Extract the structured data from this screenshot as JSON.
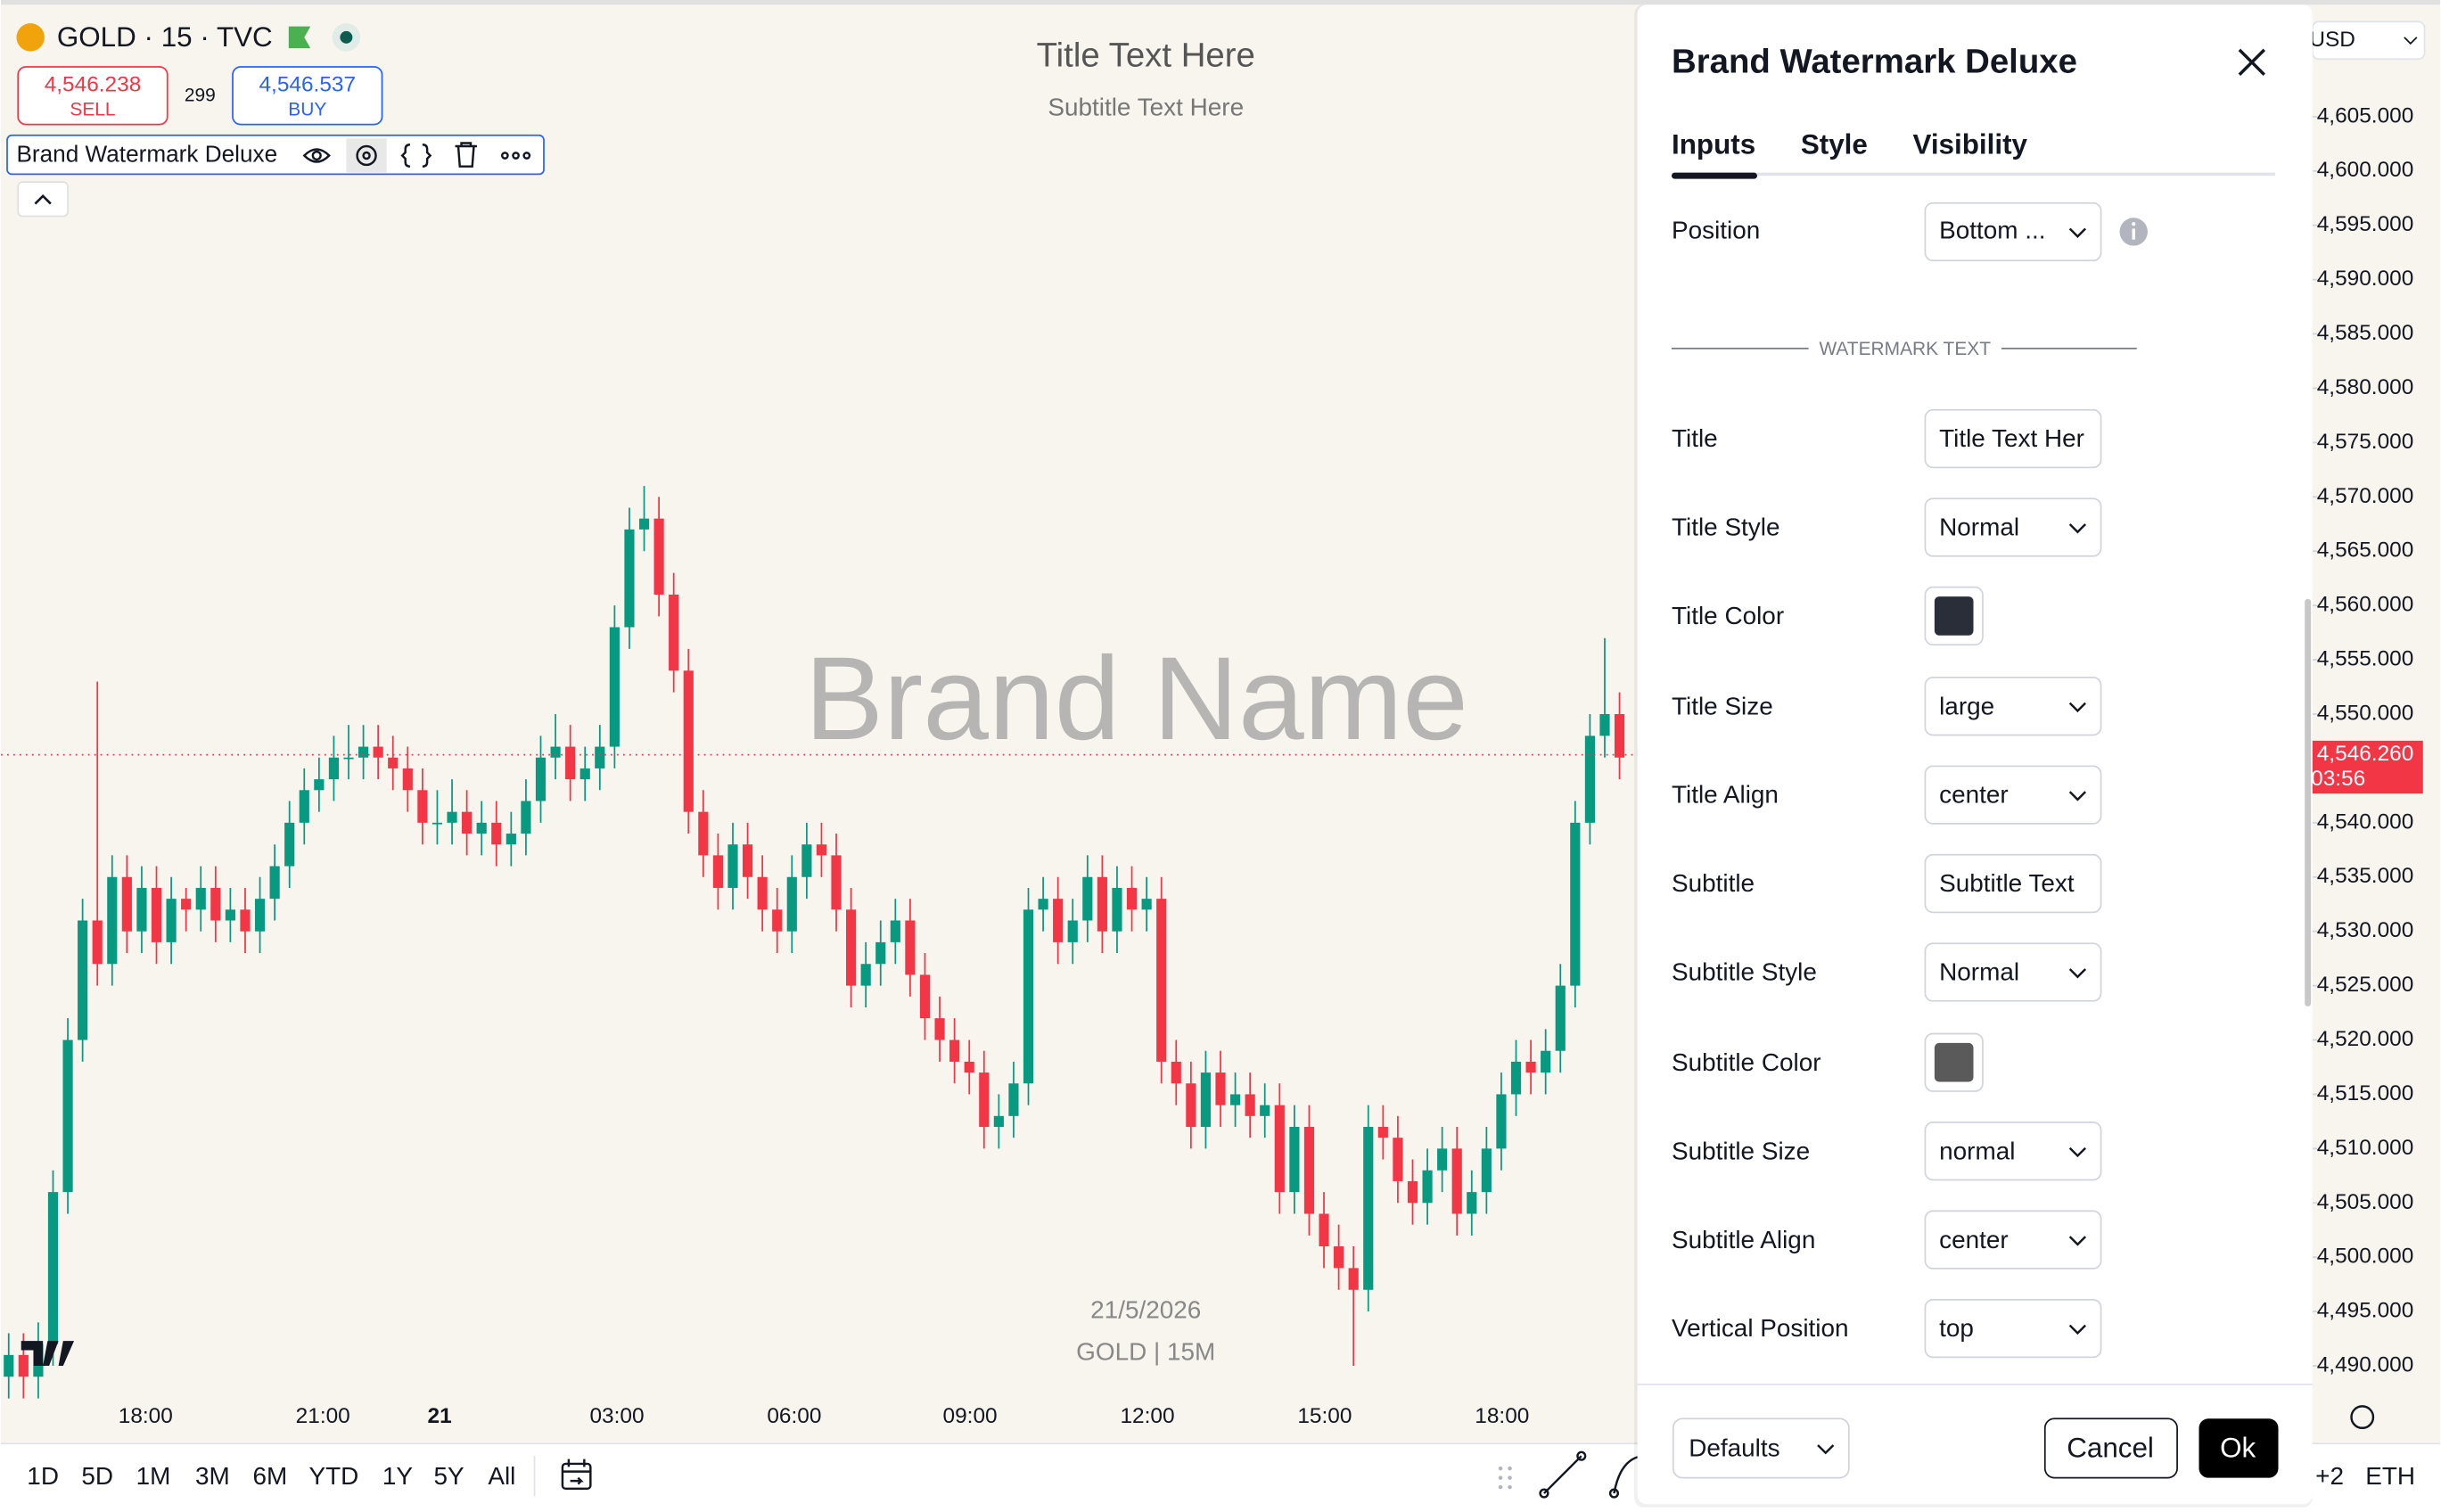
{
  "header": {
    "symbol": "GOLD · 15 · TVC",
    "sell_price": "4,546.238",
    "sell_label": "SELL",
    "spread": "299",
    "buy_price": "4,546.537",
    "buy_label": "BUY",
    "indicator": "Brand Watermark Deluxe"
  },
  "watermark": {
    "title": "Title Text Here",
    "subtitle": "Subtitle Text Here",
    "brand": "Brand Name",
    "date": "21/5/2026",
    "footer": "GOLD | 15M"
  },
  "chart_data": {
    "type": "candlestick",
    "up_color": "#089981",
    "down_color": "#f23645",
    "ohlc": [
      [
        4489,
        4493,
        4487,
        4491
      ],
      [
        4491,
        4493,
        4487,
        4489
      ],
      [
        4489,
        4494,
        4487,
        4492
      ],
      [
        4492,
        4508,
        4490,
        4506
      ],
      [
        4506,
        4522,
        4504,
        4520
      ],
      [
        4520,
        4533,
        4518,
        4531
      ],
      [
        4531,
        4553,
        4525,
        4527
      ],
      [
        4527,
        4537,
        4525,
        4535
      ],
      [
        4535,
        4537,
        4528,
        4530
      ],
      [
        4530,
        4536,
        4528,
        4534
      ],
      [
        4534,
        4536,
        4527,
        4529
      ],
      [
        4529,
        4535,
        4527,
        4533
      ],
      [
        4533,
        4534,
        4530,
        4532
      ],
      [
        4532,
        4536,
        4530,
        4534
      ],
      [
        4534,
        4536,
        4529,
        4531
      ],
      [
        4531,
        4534,
        4529,
        4532
      ],
      [
        4532,
        4534,
        4528,
        4530
      ],
      [
        4530,
        4535,
        4528,
        4533
      ],
      [
        4533,
        4538,
        4531,
        4536
      ],
      [
        4536,
        4542,
        4534,
        4540
      ],
      [
        4540,
        4545,
        4538,
        4543
      ],
      [
        4543,
        4546,
        4541,
        4544
      ],
      [
        4544,
        4548,
        4542,
        4546
      ],
      [
        4546,
        4549,
        4544,
        4546
      ],
      [
        4546,
        4549,
        4544,
        4547
      ],
      [
        4547,
        4549,
        4544,
        4546
      ],
      [
        4546,
        4548,
        4543,
        4545
      ],
      [
        4545,
        4547,
        4541,
        4543
      ],
      [
        4543,
        4545,
        4538,
        4540
      ],
      [
        4540,
        4543,
        4538,
        4540
      ],
      [
        4540,
        4544,
        4538,
        4541
      ],
      [
        4541,
        4543,
        4537,
        4539
      ],
      [
        4539,
        4542,
        4537,
        4540
      ],
      [
        4540,
        4542,
        4536,
        4538
      ],
      [
        4538,
        4541,
        4536,
        4539
      ],
      [
        4539,
        4544,
        4537,
        4542
      ],
      [
        4542,
        4548,
        4540,
        4546
      ],
      [
        4546,
        4550,
        4544,
        4547
      ],
      [
        4547,
        4549,
        4542,
        4544
      ],
      [
        4544,
        4547,
        4542,
        4545
      ],
      [
        4545,
        4549,
        4543,
        4547
      ],
      [
        4547,
        4560,
        4545,
        4558
      ],
      [
        4558,
        4569,
        4556,
        4567
      ],
      [
        4567,
        4571,
        4565,
        4568
      ],
      [
        4568,
        4570,
        4559,
        4561
      ],
      [
        4561,
        4563,
        4552,
        4554
      ],
      [
        4554,
        4556,
        4539,
        4541
      ],
      [
        4541,
        4543,
        4535,
        4537
      ],
      [
        4537,
        4539,
        4532,
        4534
      ],
      [
        4534,
        4540,
        4532,
        4538
      ],
      [
        4538,
        4540,
        4533,
        4535
      ],
      [
        4535,
        4537,
        4530,
        4532
      ],
      [
        4532,
        4534,
        4528,
        4530
      ],
      [
        4530,
        4537,
        4528,
        4535
      ],
      [
        4535,
        4540,
        4533,
        4538
      ],
      [
        4538,
        4540,
        4535,
        4537
      ],
      [
        4537,
        4539,
        4530,
        4532
      ],
      [
        4532,
        4534,
        4523,
        4525
      ],
      [
        4525,
        4529,
        4523,
        4527
      ],
      [
        4527,
        4531,
        4525,
        4529
      ],
      [
        4529,
        4533,
        4527,
        4531
      ],
      [
        4531,
        4533,
        4524,
        4526
      ],
      [
        4526,
        4528,
        4520,
        4522
      ],
      [
        4522,
        4524,
        4518,
        4520
      ],
      [
        4520,
        4522,
        4516,
        4518
      ],
      [
        4518,
        4520,
        4515,
        4517
      ],
      [
        4517,
        4519,
        4510,
        4512
      ],
      [
        4512,
        4515,
        4510,
        4513
      ],
      [
        4513,
        4518,
        4511,
        4516
      ],
      [
        4516,
        4534,
        4514,
        4532
      ],
      [
        4532,
        4535,
        4530,
        4533
      ],
      [
        4533,
        4535,
        4527,
        4529
      ],
      [
        4529,
        4533,
        4527,
        4531
      ],
      [
        4531,
        4537,
        4529,
        4535
      ],
      [
        4535,
        4537,
        4528,
        4530
      ],
      [
        4530,
        4536,
        4528,
        4534
      ],
      [
        4534,
        4536,
        4530,
        4532
      ],
      [
        4532,
        4535,
        4530,
        4533
      ],
      [
        4533,
        4535,
        4516,
        4518
      ],
      [
        4518,
        4520,
        4514,
        4516
      ],
      [
        4516,
        4518,
        4510,
        4512
      ],
      [
        4512,
        4519,
        4510,
        4517
      ],
      [
        4517,
        4519,
        4512,
        4514
      ],
      [
        4514,
        4517,
        4512,
        4515
      ],
      [
        4515,
        4517,
        4511,
        4513
      ],
      [
        4513,
        4516,
        4511,
        4514
      ],
      [
        4514,
        4516,
        4504,
        4506
      ],
      [
        4506,
        4514,
        4504,
        4512
      ],
      [
        4512,
        4514,
        4502,
        4504
      ],
      [
        4504,
        4506,
        4499,
        4501
      ],
      [
        4501,
        4503,
        4497,
        4499
      ],
      [
        4499,
        4501,
        4490,
        4497
      ],
      [
        4497,
        4514,
        4495,
        4512
      ],
      [
        4512,
        4514,
        4509,
        4511
      ],
      [
        4511,
        4513,
        4505,
        4507
      ],
      [
        4507,
        4509,
        4503,
        4505
      ],
      [
        4505,
        4510,
        4503,
        4508
      ],
      [
        4508,
        4512,
        4506,
        4510
      ],
      [
        4510,
        4512,
        4502,
        4504
      ],
      [
        4504,
        4508,
        4502,
        4506
      ],
      [
        4506,
        4512,
        4504,
        4510
      ],
      [
        4510,
        4517,
        4508,
        4515
      ],
      [
        4515,
        4520,
        4513,
        4518
      ],
      [
        4518,
        4520,
        4515,
        4517
      ],
      [
        4517,
        4521,
        4515,
        4519
      ],
      [
        4519,
        4527,
        4517,
        4525
      ],
      [
        4525,
        4542,
        4523,
        4540
      ],
      [
        4540,
        4550,
        4538,
        4548
      ],
      [
        4548,
        4557,
        4546,
        4550
      ],
      [
        4550,
        4552,
        4544,
        4546
      ]
    ],
    "ylim": [
      4485,
      4615
    ],
    "yticks": [
      {
        "value": 4605,
        "label": "4,605.000"
      },
      {
        "value": 4600,
        "label": "4,600.000"
      },
      {
        "value": 4595,
        "label": "4,595.000"
      },
      {
        "value": 4590,
        "label": "4,590.000"
      },
      {
        "value": 4585,
        "label": "4,585.000"
      },
      {
        "value": 4580,
        "label": "4,580.000"
      },
      {
        "value": 4575,
        "label": "4,575.000"
      },
      {
        "value": 4570,
        "label": "4,570.000"
      },
      {
        "value": 4565,
        "label": "4,565.000"
      },
      {
        "value": 4560,
        "label": "4,560.000"
      },
      {
        "value": 4555,
        "label": "4,555.000"
      },
      {
        "value": 4550,
        "label": "4,550.000"
      },
      {
        "value": 4540,
        "label": "4,540.000"
      },
      {
        "value": 4535,
        "label": "4,535.000"
      },
      {
        "value": 4530,
        "label": "4,530.000"
      },
      {
        "value": 4525,
        "label": "4,525.000"
      },
      {
        "value": 4520,
        "label": "4,520.000"
      },
      {
        "value": 4515,
        "label": "4,515.000"
      },
      {
        "value": 4510,
        "label": "4,510.000"
      },
      {
        "value": 4505,
        "label": "4,505.000"
      },
      {
        "value": 4500,
        "label": "4,500.000"
      },
      {
        "value": 4495,
        "label": "4,495.000"
      },
      {
        "value": 4490,
        "label": "4,490.000"
      }
    ],
    "x_labels": [
      "18:00",
      "21:00",
      "21",
      "03:00",
      "06:00",
      "09:00",
      "12:00",
      "15:00",
      "18:00"
    ],
    "last_price": {
      "value": 4546.26,
      "label": "4,546.260"
    },
    "countdown": "03:56",
    "currency": "USD"
  },
  "timeframes": [
    "1D",
    "5D",
    "1M",
    "3M",
    "6M",
    "YTD",
    "1Y",
    "5Y",
    "All"
  ],
  "bottom": {
    "more": "+2",
    "session": "ETH"
  },
  "dialog": {
    "title": "Brand Watermark Deluxe",
    "tabs": [
      "Inputs",
      "Style",
      "Visibility"
    ],
    "position": {
      "label": "Position",
      "value": "Bottom ..."
    },
    "section": "WATERMARK TEXT",
    "fields": [
      {
        "label": "Title",
        "type": "text",
        "value": "Title Text Her"
      },
      {
        "label": "Title Style",
        "type": "select",
        "value": "Normal"
      },
      {
        "label": "Title Color",
        "type": "color",
        "color": "#2a2e39"
      },
      {
        "label": "Title Size",
        "type": "select",
        "value": "large"
      },
      {
        "label": "Title Align",
        "type": "select",
        "value": "center"
      },
      {
        "label": "Subtitle",
        "type": "text",
        "value": "Subtitle Text"
      },
      {
        "label": "Subtitle Style",
        "type": "select",
        "value": "Normal"
      },
      {
        "label": "Subtitle Color",
        "type": "color",
        "color": "#5a5a5a"
      },
      {
        "label": "Subtitle Size",
        "type": "select",
        "value": "normal"
      },
      {
        "label": "Subtitle Align",
        "type": "select",
        "value": "center"
      },
      {
        "label": "Vertical Position",
        "type": "select",
        "value": "top"
      }
    ],
    "buttons": {
      "defaults": "Defaults",
      "cancel": "Cancel",
      "ok": "Ok"
    }
  }
}
